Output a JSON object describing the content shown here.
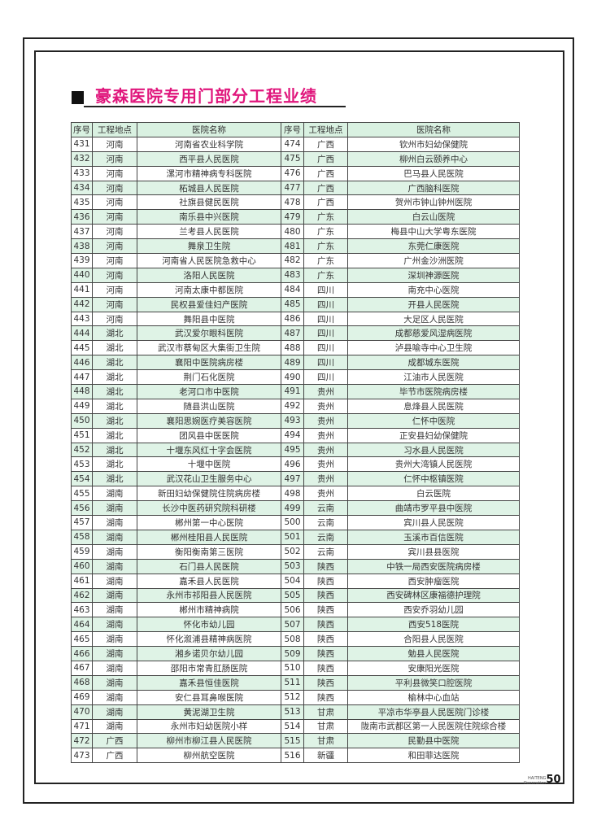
{
  "title": "豪森医院专用门部分工程业绩",
  "columns": [
    "序号",
    "工程地点",
    "医院名称",
    "序号",
    "工程地点",
    "医院名称"
  ],
  "rows": [
    [
      [
        "431",
        "河南",
        "河南省农业科学院"
      ],
      [
        "474",
        "广西",
        "钦州市妇幼保健院"
      ]
    ],
    [
      [
        "432",
        "河南",
        "西平县人民医院"
      ],
      [
        "475",
        "广西",
        "柳州白云颐养中心"
      ]
    ],
    [
      [
        "433",
        "河南",
        "漯河市精神病专科医院"
      ],
      [
        "476",
        "广西",
        "巴马县人民医院"
      ]
    ],
    [
      [
        "434",
        "河南",
        "柘城县人民医院"
      ],
      [
        "477",
        "广西",
        "广西脑科医院"
      ]
    ],
    [
      [
        "435",
        "河南",
        "社旗县健民医院"
      ],
      [
        "478",
        "广西",
        "贺州市钟山钟州医院"
      ]
    ],
    [
      [
        "436",
        "河南",
        "南乐县中兴医院"
      ],
      [
        "479",
        "广东",
        "白云山医院"
      ]
    ],
    [
      [
        "437",
        "河南",
        "兰考县人民医院"
      ],
      [
        "480",
        "广东",
        "梅县中山大学粤东医院"
      ]
    ],
    [
      [
        "438",
        "河南",
        "舞泉卫生院"
      ],
      [
        "481",
        "广东",
        "东莞仁康医院"
      ]
    ],
    [
      [
        "439",
        "河南",
        "河南省人民医院急救中心"
      ],
      [
        "482",
        "广东",
        "广州金沙洲医院"
      ]
    ],
    [
      [
        "440",
        "河南",
        "洛阳人民医院"
      ],
      [
        "483",
        "广东",
        "深圳神源医院"
      ]
    ],
    [
      [
        "441",
        "河南",
        "河南太康中都医院"
      ],
      [
        "484",
        "四川",
        "南充中心医院"
      ]
    ],
    [
      [
        "442",
        "河南",
        "民权县爱佳妇产医院"
      ],
      [
        "485",
        "四川",
        "开县人民医院"
      ]
    ],
    [
      [
        "443",
        "河南",
        "舞阳县中医院"
      ],
      [
        "486",
        "四川",
        "大足区人民医院"
      ]
    ],
    [
      [
        "444",
        "湖北",
        "武汉爱尔眼科医院"
      ],
      [
        "487",
        "四川",
        "成都慈爱风湿病医院"
      ]
    ],
    [
      [
        "445",
        "湖北",
        "武汉市蔡甸区大集街卫生院"
      ],
      [
        "488",
        "四川",
        "泸县喻寺中心卫生院"
      ]
    ],
    [
      [
        "446",
        "湖北",
        "襄阳中医院病房楼"
      ],
      [
        "489",
        "四川",
        "成都城东医院"
      ]
    ],
    [
      [
        "447",
        "湖北",
        "荆门石化医院"
      ],
      [
        "490",
        "四川",
        "江油市人民医院"
      ]
    ],
    [
      [
        "448",
        "湖北",
        "老河口市中医院"
      ],
      [
        "491",
        "贵州",
        "毕节市医院病房楼"
      ]
    ],
    [
      [
        "449",
        "湖北",
        "随县洪山医院"
      ],
      [
        "492",
        "贵州",
        "息烽县人民医院"
      ]
    ],
    [
      [
        "450",
        "湖北",
        "襄阳思婉医疗美容医院"
      ],
      [
        "493",
        "贵州",
        "仁怀中医院"
      ]
    ],
    [
      [
        "451",
        "湖北",
        "团风县中医医院"
      ],
      [
        "494",
        "贵州",
        "正安县妇幼保健院"
      ]
    ],
    [
      [
        "452",
        "湖北",
        "十堰东风红十字会医院"
      ],
      [
        "495",
        "贵州",
        "习水县人民医院"
      ]
    ],
    [
      [
        "453",
        "湖北",
        "十堰中医院"
      ],
      [
        "496",
        "贵州",
        "贵州大湾镇人民医院"
      ]
    ],
    [
      [
        "454",
        "湖北",
        "武汉花山卫生服务中心"
      ],
      [
        "497",
        "贵州",
        "仁怀中枢镇医院"
      ]
    ],
    [
      [
        "455",
        "湖南",
        "新田妇幼保健院住院病房楼"
      ],
      [
        "498",
        "贵州",
        "白云医院"
      ]
    ],
    [
      [
        "456",
        "湖南",
        "长沙中医药研究院科研楼"
      ],
      [
        "499",
        "云南",
        "曲靖市罗平县中医院"
      ]
    ],
    [
      [
        "457",
        "湖南",
        "郴州第一中心医院"
      ],
      [
        "500",
        "云南",
        "宾川县人民医院"
      ]
    ],
    [
      [
        "458",
        "湖南",
        "郴州桂阳县人民医院"
      ],
      [
        "501",
        "云南",
        "玉溪市百信医院"
      ]
    ],
    [
      [
        "459",
        "湖南",
        "衡阳衡南第三医院"
      ],
      [
        "502",
        "云南",
        "宾川县县医院"
      ]
    ],
    [
      [
        "460",
        "湖南",
        "石门县人民医院"
      ],
      [
        "503",
        "陕西",
        "中铁一局西安医院病房楼"
      ]
    ],
    [
      [
        "461",
        "湖南",
        "嘉禾县人民医院"
      ],
      [
        "504",
        "陕西",
        "西安肿瘤医院"
      ]
    ],
    [
      [
        "462",
        "湖南",
        "永州市祁阳县人民医院"
      ],
      [
        "505",
        "陕西",
        "西安碑林区康福德护理院"
      ]
    ],
    [
      [
        "463",
        "湖南",
        "郴州市精神病院"
      ],
      [
        "506",
        "陕西",
        "西安乔羽幼儿园"
      ]
    ],
    [
      [
        "464",
        "湖南",
        "怀化市幼儿园"
      ],
      [
        "507",
        "陕西",
        "西安518医院"
      ]
    ],
    [
      [
        "465",
        "湖南",
        "怀化溆浦县精神病医院"
      ],
      [
        "508",
        "陕西",
        "合阳县人民医院"
      ]
    ],
    [
      [
        "466",
        "湖南",
        "湘乡诺贝尔幼儿园"
      ],
      [
        "509",
        "陕西",
        "勉县人民医院"
      ]
    ],
    [
      [
        "467",
        "湖南",
        "邵阳市常青肛肠医院"
      ],
      [
        "510",
        "陕西",
        "安康阳光医院"
      ]
    ],
    [
      [
        "468",
        "湖南",
        "嘉禾县恒佳医院"
      ],
      [
        "511",
        "陕西",
        "平利县微笑口腔医院"
      ]
    ],
    [
      [
        "469",
        "湖南",
        "安仁县耳鼻喉医院"
      ],
      [
        "512",
        "陕西",
        "榆林中心血站"
      ]
    ],
    [
      [
        "470",
        "湖南",
        "黄泥湖卫生院"
      ],
      [
        "513",
        "甘肃",
        "平凉市华亭县人民医院门诊楼"
      ]
    ],
    [
      [
        "471",
        "湖南",
        "永州市妇幼医院小样"
      ],
      [
        "514",
        "甘肃",
        "陇南市武都区第一人民医院住院综合楼"
      ]
    ],
    [
      [
        "472",
        "广西",
        "柳州市柳江县人民医院"
      ],
      [
        "515",
        "甘肃",
        "民勤县中医院"
      ]
    ],
    [
      [
        "473",
        "广西",
        "柳州航空医院"
      ],
      [
        "516",
        "新疆",
        "和田菲达医院"
      ]
    ]
  ],
  "footer": {
    "brand_line1": "HAITENG",
    "brand_line2": "Decoration",
    "page_number": "50"
  },
  "colors": {
    "title": "#e0167c",
    "row_shade": "#dff3e6",
    "header_shade": "#d9f1e1"
  }
}
